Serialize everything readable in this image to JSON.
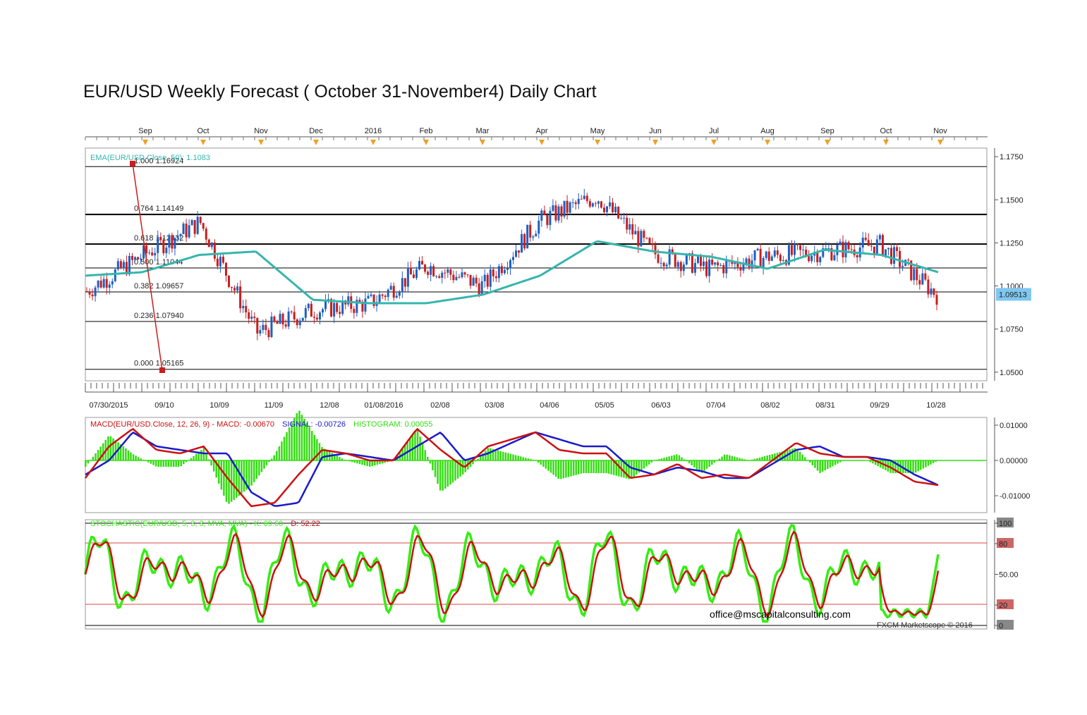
{
  "title": "EUR/USD  Weekly Forecast ( October 31-November4) Daily Chart",
  "top_axis": {
    "months": [
      "Sep",
      "Oct",
      "Nov",
      "Dec",
      "2016",
      "Feb",
      "Mar",
      "Apr",
      "May",
      "Jun",
      "Jul",
      "Aug",
      "Sep",
      "Oct",
      "Nov"
    ]
  },
  "bottom_axis": {
    "dates": [
      "07/30/2015",
      "09/10",
      "10/09",
      "11/09",
      "12/08",
      "01/08/2016",
      "02/08",
      "03/08",
      "04/06",
      "05/05",
      "06/03",
      "07/04",
      "08/02",
      "08/31",
      "09/29",
      "10/28"
    ]
  },
  "price_panel": {
    "ema_label": "EMA(EUR/USD.Close, 50): 1.1083",
    "y_ticks": [
      "1.1750",
      "1.1500",
      "1.1250",
      "1.1000",
      "1.0750",
      "1.0500"
    ],
    "current_price": "1.09513",
    "current_price_color": "#7fc7f0",
    "fib_levels": [
      {
        "ratio": "1.000",
        "value": "1.16924",
        "price": 1.16924
      },
      {
        "ratio": "0.764",
        "value": "1.14149",
        "price": 1.14149
      },
      {
        "ratio": "0.618",
        "value": "1.12432",
        "price": 1.12432
      },
      {
        "ratio": "0.500",
        "value": "1.11044",
        "price": 1.11044
      },
      {
        "ratio": "0.382",
        "value": "1.09657",
        "price": 1.09657
      },
      {
        "ratio": "0.236",
        "value": "1.07940",
        "price": 1.0794
      },
      {
        "ratio": "0.000",
        "value": "1.05165",
        "price": 1.05165
      }
    ],
    "colors": {
      "up": "#1f5fc2",
      "down": "#c81e1e",
      "ema": "#35b5ad",
      "fib_line": "#000000"
    }
  },
  "macd_panel": {
    "label_name": "MACD(EUR/USD.Close, 12, 26, 9) - ",
    "label_macd": "MACD: -0.00670",
    "label_signal": "SIGNAL: -0.00726",
    "label_hist": "HISTOGRAM: 0.00055",
    "y_ticks": [
      "0.01000",
      "0.00000",
      "-0.01000"
    ],
    "colors": {
      "macd": "#cc1111",
      "signal": "#1a1acc",
      "hist": "#33dd11"
    }
  },
  "stoch_panel": {
    "label_name": "STOCHASTIC(EUR/USD, 5, 3, 3, MVA, MVA) - ",
    "label_k": "K: 69.60",
    "label_d": "D: 52.22",
    "y_ticks": [
      "100",
      "80",
      "50.00",
      "20",
      "0"
    ],
    "colors": {
      "k": "#33ee11",
      "d": "#cc1111"
    }
  },
  "email": "office@mscapitalconsulting.com",
  "copyright": "FXCM Marketscope © 2016",
  "chart_data": {
    "type": "line",
    "title": "EUR/USD  Weekly Forecast ( October 31-November4) Daily Chart",
    "x": [
      "07/30/2015",
      "09/10",
      "10/09",
      "11/09",
      "12/08",
      "01/08/2016",
      "02/08",
      "03/08",
      "04/06",
      "05/05",
      "06/03",
      "07/04",
      "08/02",
      "08/31",
      "09/29",
      "10/28"
    ],
    "series": [
      {
        "name": "EMA(EUR/USD.Close, 50)",
        "values": [
          1.106,
          1.108,
          1.118,
          1.12,
          1.092,
          1.09,
          1.09,
          1.095,
          1.106,
          1.126,
          1.12,
          1.117,
          1.11,
          1.121,
          1.118,
          1.108
        ]
      },
      {
        "name": "EUR/USD",
        "values": [
          1.097,
          1.118,
          1.137,
          1.073,
          1.086,
          1.09,
          1.112,
          1.1,
          1.138,
          1.152,
          1.119,
          1.11,
          1.117,
          1.12,
          1.124,
          1.095
        ]
      }
    ],
    "ylim": [
      1.045,
      1.18
    ],
    "yticks": [
      1.05,
      1.075,
      1.1,
      1.125,
      1.15,
      1.175
    ],
    "last_value": 1.09513
  }
}
